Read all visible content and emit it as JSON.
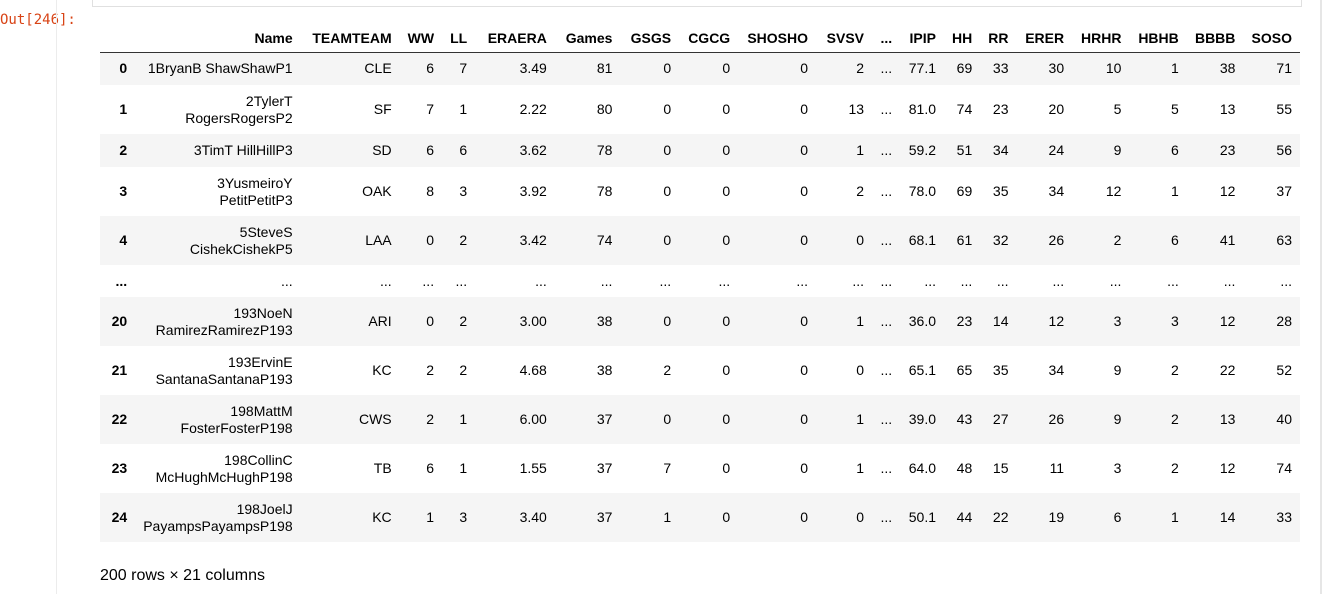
{
  "cell": {
    "prompt": "Out[246]:"
  },
  "table": {
    "columns": [
      "Name",
      "TEAMTEAM",
      "WW",
      "LL",
      "ERAERA",
      "Games",
      "GSGS",
      "CGCG",
      "SHOSHO",
      "SVSV",
      "...",
      "IPIP",
      "HH",
      "RR",
      "ERER",
      "HRHR",
      "HBHB",
      "BBBB",
      "SOSO"
    ],
    "rows": [
      {
        "index": "0",
        "name": "1BryanB ShawShawP1",
        "cells": [
          "CLE",
          "6",
          "7",
          "3.49",
          "81",
          "0",
          "0",
          "0",
          "2",
          "...",
          "77.1",
          "69",
          "33",
          "30",
          "10",
          "1",
          "38",
          "71"
        ]
      },
      {
        "index": "1",
        "name": "2TylerT RogersRogersP2",
        "cells": [
          "SF",
          "7",
          "1",
          "2.22",
          "80",
          "0",
          "0",
          "0",
          "13",
          "...",
          "81.0",
          "74",
          "23",
          "20",
          "5",
          "5",
          "13",
          "55"
        ]
      },
      {
        "index": "2",
        "name": "3TimT HillHillP3",
        "cells": [
          "SD",
          "6",
          "6",
          "3.62",
          "78",
          "0",
          "0",
          "0",
          "1",
          "...",
          "59.2",
          "51",
          "34",
          "24",
          "9",
          "6",
          "23",
          "56"
        ]
      },
      {
        "index": "3",
        "name": "3YusmeiroY PetitPetitP3",
        "cells": [
          "OAK",
          "8",
          "3",
          "3.92",
          "78",
          "0",
          "0",
          "0",
          "2",
          "...",
          "78.0",
          "69",
          "35",
          "34",
          "12",
          "1",
          "12",
          "37"
        ]
      },
      {
        "index": "4",
        "name": "5SteveS CishekCishekP5",
        "cells": [
          "LAA",
          "0",
          "2",
          "3.42",
          "74",
          "0",
          "0",
          "0",
          "0",
          "...",
          "68.1",
          "61",
          "32",
          "26",
          "2",
          "6",
          "41",
          "63"
        ]
      },
      {
        "index": "...",
        "name": "...",
        "cells": [
          "...",
          "...",
          "...",
          "...",
          "...",
          "...",
          "...",
          "...",
          "...",
          "...",
          "...",
          "...",
          "...",
          "...",
          "...",
          "...",
          "...",
          "..."
        ]
      },
      {
        "index": "20",
        "name": "193NoeN RamirezRamirezP193",
        "cells": [
          "ARI",
          "0",
          "2",
          "3.00",
          "38",
          "0",
          "0",
          "0",
          "1",
          "...",
          "36.0",
          "23",
          "14",
          "12",
          "3",
          "3",
          "12",
          "28"
        ]
      },
      {
        "index": "21",
        "name": "193ErvinE SantanaSantanaP193",
        "cells": [
          "KC",
          "2",
          "2",
          "4.68",
          "38",
          "2",
          "0",
          "0",
          "0",
          "...",
          "65.1",
          "65",
          "35",
          "34",
          "9",
          "2",
          "22",
          "52"
        ]
      },
      {
        "index": "22",
        "name": "198MattM FosterFosterP198",
        "cells": [
          "CWS",
          "2",
          "1",
          "6.00",
          "37",
          "0",
          "0",
          "0",
          "1",
          "...",
          "39.0",
          "43",
          "27",
          "26",
          "9",
          "2",
          "13",
          "40"
        ]
      },
      {
        "index": "23",
        "name": "198CollinC McHughMcHughP198",
        "cells": [
          "TB",
          "6",
          "1",
          "1.55",
          "37",
          "7",
          "0",
          "0",
          "1",
          "...",
          "64.0",
          "48",
          "15",
          "11",
          "3",
          "2",
          "12",
          "74"
        ]
      },
      {
        "index": "24",
        "name": "198JoelJ PayampsPayampsP198",
        "cells": [
          "KC",
          "1",
          "3",
          "3.40",
          "37",
          "1",
          "0",
          "0",
          "0",
          "...",
          "50.1",
          "44",
          "22",
          "19",
          "6",
          "1",
          "14",
          "33"
        ]
      }
    ],
    "footer": "200 rows × 21 columns"
  }
}
